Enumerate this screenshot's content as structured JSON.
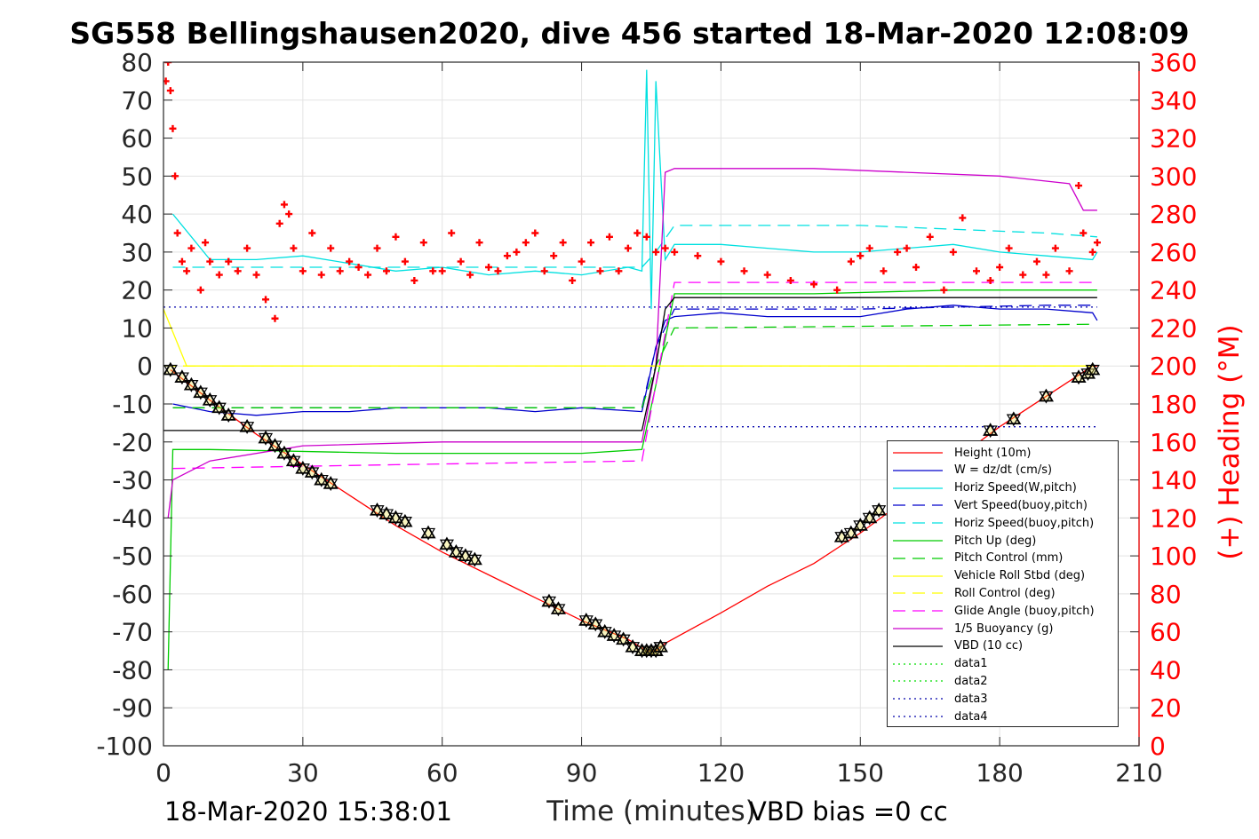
{
  "title": "SG558 Bellingshausen2020, dive 456 started 18-Mar-2020 12:08:09",
  "footer": {
    "timestamp": "18-Mar-2020 15:38:01",
    "vbd_bias": "VBD bias =0 cc"
  },
  "chart_data": {
    "type": "line",
    "title": "SG558 Bellingshausen2020, dive 456 started 18-Mar-2020 12:08:09",
    "xlabel": "Time (minutes)",
    "ylabel": "",
    "ylabel_right": "(+) Heading (°M)",
    "xlim": [
      0,
      210
    ],
    "ylim": [
      -100,
      80
    ],
    "ylim_right": [
      0,
      360
    ],
    "xticks": [
      "0",
      "30",
      "60",
      "90",
      "120",
      "150",
      "180",
      "210"
    ],
    "yticks": [
      "80",
      "70",
      "60",
      "50",
      "40",
      "30",
      "20",
      "10",
      "0",
      "-10",
      "-20",
      "-30",
      "-40",
      "-50",
      "-60",
      "-70",
      "-80",
      "-90",
      "-100"
    ],
    "yticks_right": [
      "360",
      "340",
      "320",
      "300",
      "280",
      "260",
      "240",
      "220",
      "200",
      "180",
      "160",
      "140",
      "120",
      "100",
      "80",
      "60",
      "40",
      "20",
      "0"
    ],
    "grid": true,
    "legend_position": "lower-right",
    "series": [
      {
        "name": "Height (10m)",
        "color": "#ff0000",
        "style": "solid",
        "axis": "left",
        "x": [
          1.5,
          10,
          20,
          30,
          40,
          50,
          60,
          70,
          80,
          90,
          100,
          104,
          106,
          108,
          120,
          130,
          140,
          150,
          160,
          170,
          180,
          190,
          200,
          201
        ],
        "y": [
          -1,
          -9,
          -18,
          -26,
          -34,
          -42,
          -49,
          -55,
          -61,
          -67,
          -72,
          -75,
          -75,
          -73,
          -65,
          -58,
          -52,
          -44,
          -35,
          -25,
          -16,
          -8,
          0,
          0
        ]
      },
      {
        "name": "W = dz/dt (cm/s)",
        "color": "#0000cc",
        "style": "solid",
        "axis": "left",
        "x": [
          2,
          10,
          20,
          30,
          40,
          50,
          60,
          70,
          80,
          90,
          103,
          106,
          108,
          110,
          120,
          130,
          140,
          150,
          160,
          170,
          180,
          190,
          200,
          201
        ],
        "y": [
          -10,
          -12,
          -13,
          -12,
          -12,
          -11,
          -11,
          -11,
          -12,
          -11,
          -12,
          5,
          12,
          13,
          14,
          13,
          13,
          13,
          15,
          16,
          15,
          15,
          14,
          12
        ]
      },
      {
        "name": "Horiz Speed(W,pitch)",
        "color": "#00e0e0",
        "style": "solid",
        "axis": "left",
        "x": [
          2,
          10,
          20,
          30,
          40,
          50,
          60,
          70,
          80,
          90,
          100,
          103,
          104,
          105,
          106,
          108,
          110,
          120,
          130,
          140,
          150,
          160,
          170,
          180,
          190,
          200,
          201
        ],
        "y": [
          40,
          28,
          28,
          29,
          27,
          25,
          26,
          24,
          25,
          24,
          26,
          25,
          78,
          15,
          75,
          28,
          32,
          32,
          31,
          30,
          30,
          31,
          32,
          30,
          29,
          28,
          30
        ]
      },
      {
        "name": "Vert Speed(buoy,pitch)",
        "color": "#0000cc",
        "style": "dashed",
        "axis": "left",
        "x": [
          2,
          103,
          106,
          110,
          150,
          190,
          201
        ],
        "y": [
          -11,
          -11,
          5,
          15,
          15,
          16,
          16
        ]
      },
      {
        "name": "Horiz Speed(buoy,pitch)",
        "color": "#00e0e0",
        "style": "dashed",
        "axis": "left",
        "x": [
          2,
          103,
          106,
          110,
          150,
          190,
          201
        ],
        "y": [
          26,
          26,
          30,
          37,
          37,
          35,
          34
        ]
      },
      {
        "name": "Pitch Up (deg)",
        "color": "#00cc00",
        "style": "solid",
        "axis": "left",
        "x": [
          1,
          2,
          10,
          50,
          90,
          103,
          106,
          110,
          140,
          170,
          201
        ],
        "y": [
          -80,
          -22,
          -22,
          -23,
          -23,
          -22,
          -5,
          19,
          19,
          20,
          20
        ]
      },
      {
        "name": "Pitch Control (mm)",
        "color": "#00cc00",
        "style": "dashed",
        "axis": "left",
        "x": [
          2,
          103,
          106,
          110,
          200
        ],
        "y": [
          -11,
          -11,
          0,
          10,
          11
        ]
      },
      {
        "name": "Vehicle Roll Stbd (deg)",
        "color": "#ffff00",
        "style": "solid",
        "axis": "left",
        "x": [
          0,
          5,
          10,
          20,
          40,
          60,
          80,
          100,
          103,
          110,
          140,
          170,
          200
        ],
        "y": [
          15,
          0,
          0,
          0,
          0,
          0,
          0,
          0,
          0,
          0,
          0,
          0,
          0
        ]
      },
      {
        "name": "Roll Control (deg)",
        "color": "#ffff00",
        "style": "dashed",
        "axis": "left",
        "x": [
          0,
          103,
          110,
          200
        ],
        "y": [
          0,
          0,
          0,
          0
        ]
      },
      {
        "name": "Glide Angle (buoy,pitch)",
        "color": "#ff00ff",
        "style": "dashed",
        "axis": "left",
        "x": [
          2,
          50,
          103,
          110,
          200
        ],
        "y": [
          -27,
          -26,
          -25,
          22,
          22
        ]
      },
      {
        "name": "1/5 Buoyancy (g)",
        "color": "#cc00cc",
        "style": "solid",
        "axis": "left",
        "x": [
          1,
          2,
          10,
          30,
          60,
          90,
          103,
          106,
          108,
          110,
          140,
          160,
          180,
          195,
          198,
          201
        ],
        "y": [
          -40,
          -30,
          -25,
          -21,
          -20,
          -20,
          -20,
          0,
          51,
          52,
          52,
          51,
          50,
          48,
          41,
          41
        ]
      },
      {
        "name": "VBD (10 cc)",
        "color": "#000000",
        "style": "solid",
        "axis": "left",
        "x": [
          0,
          103,
          106,
          108,
          110,
          201
        ],
        "y": [
          -17,
          -17,
          0,
          15,
          18,
          18
        ]
      },
      {
        "name": "data1",
        "color": "#00dd00",
        "style": "dotted",
        "axis": "left",
        "x": [],
        "y": []
      },
      {
        "name": "data2",
        "color": "#00dd00",
        "style": "dotted",
        "axis": "left",
        "x": [],
        "y": []
      },
      {
        "name": "data3",
        "color": "#0000aa",
        "style": "dotted",
        "axis": "left",
        "x": [
          0,
          201
        ],
        "y": [
          15.5,
          15.5
        ]
      },
      {
        "name": "data4",
        "color": "#0000aa",
        "style": "dotted",
        "axis": "left",
        "x": [
          105,
          201
        ],
        "y": [
          -16,
          -16
        ]
      }
    ],
    "heading_series": {
      "axis": "right",
      "color": "#ff0000",
      "marker": "+",
      "x": [
        0.5,
        1,
        1.5,
        2,
        2.5,
        3,
        4,
        5,
        6,
        8,
        9,
        10,
        12,
        14,
        16,
        18,
        20,
        22,
        24,
        25,
        26,
        27,
        28,
        30,
        32,
        34,
        36,
        38,
        40,
        42,
        44,
        46,
        48,
        50,
        52,
        54,
        56,
        58,
        60,
        62,
        64,
        66,
        68,
        70,
        72,
        74,
        76,
        78,
        80,
        82,
        84,
        86,
        88,
        90,
        92,
        94,
        96,
        98,
        100,
        102,
        104,
        106,
        108,
        110,
        115,
        120,
        125,
        130,
        135,
        140,
        145,
        148,
        150,
        152,
        155,
        158,
        160,
        162,
        165,
        168,
        170,
        172,
        175,
        178,
        180,
        182,
        185,
        188,
        190,
        192,
        195,
        197,
        198,
        200,
        201
      ],
      "y": [
        350,
        360,
        345,
        325,
        300,
        270,
        255,
        250,
        262,
        240,
        265,
        255,
        248,
        255,
        250,
        262,
        248,
        235,
        225,
        275,
        285,
        280,
        262,
        250,
        270,
        248,
        262,
        250,
        255,
        252,
        248,
        262,
        250,
        268,
        255,
        245,
        265,
        250,
        250,
        270,
        255,
        248,
        265,
        252,
        250,
        258,
        260,
        265,
        270,
        250,
        258,
        265,
        245,
        255,
        265,
        250,
        268,
        250,
        262,
        270,
        268,
        260,
        262,
        260,
        258,
        255,
        250,
        248,
        245,
        243,
        240,
        255,
        258,
        262,
        250,
        260,
        262,
        252,
        268,
        240,
        260,
        278,
        250,
        245,
        252,
        262,
        248,
        255,
        248,
        262,
        250,
        295,
        270,
        260,
        265
      ]
    },
    "flag_series": {
      "axis": "left",
      "color": "#000000",
      "marker": "triangle",
      "x": [
        1.5,
        4,
        6,
        8,
        10,
        12,
        14,
        18,
        22,
        24,
        26,
        28,
        30,
        32,
        34,
        36,
        46,
        48,
        50,
        52,
        57,
        61,
        63,
        65,
        67,
        83,
        85,
        91,
        93,
        95,
        97,
        99,
        101,
        103,
        104,
        105,
        106,
        107,
        146,
        148,
        150,
        152,
        154,
        178,
        183,
        190,
        197,
        199,
        200
      ],
      "y": [
        -1,
        -3,
        -5,
        -7,
        -9,
        -11,
        -13,
        -16,
        -19,
        -21,
        -23,
        -25,
        -27,
        -28,
        -30,
        -31,
        -38,
        -39,
        -40,
        -41,
        -44,
        -47,
        -49,
        -50,
        -51,
        -62,
        -64,
        -67,
        -68,
        -70,
        -71,
        -72,
        -74,
        -75,
        -75,
        -75,
        -75,
        -74,
        -45,
        -44,
        -42,
        -40,
        -38,
        -17,
        -14,
        -8,
        -3,
        -2,
        -1
      ]
    }
  }
}
